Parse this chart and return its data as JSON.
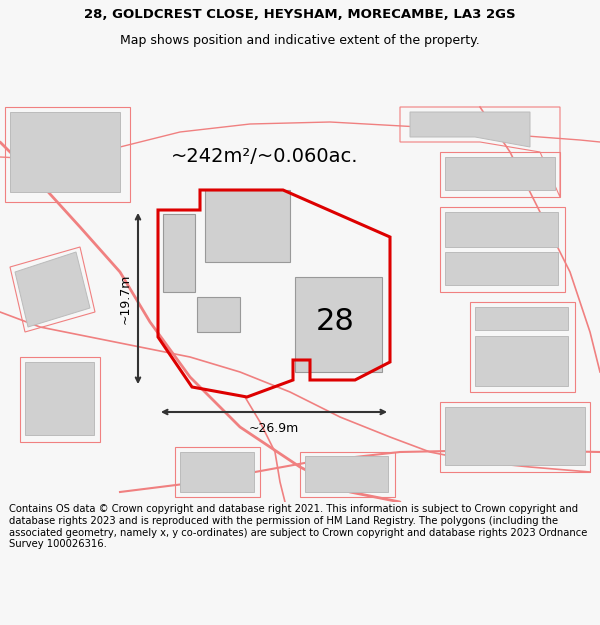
{
  "title_line1": "28, GOLDCREST CLOSE, HEYSHAM, MORECAMBE, LA3 2GS",
  "title_line2": "Map shows position and indicative extent of the property.",
  "area_text": "~242m²/~0.060ac.",
  "dim_width": "~26.9m",
  "dim_height": "~19.7m",
  "label_28": "28",
  "footer": "Contains OS data © Crown copyright and database right 2021. This information is subject to Crown copyright and database rights 2023 and is reproduced with the permission of HM Land Registry. The polygons (including the associated geometry, namely x, y co-ordinates) are subject to Crown copyright and database rights 2023 Ordnance Survey 100026316.",
  "bg_color": "#f7f7f7",
  "map_bg": "#ffffff",
  "highlight_color": "#dd0000",
  "building_fill": "#d0d0d0",
  "other_line_color": "#f08080",
  "dim_line_color": "#333333",
  "title_fontsize": 9.5,
  "footer_fontsize": 7.2,
  "area_fontsize": 14,
  "label_fontsize": 22
}
